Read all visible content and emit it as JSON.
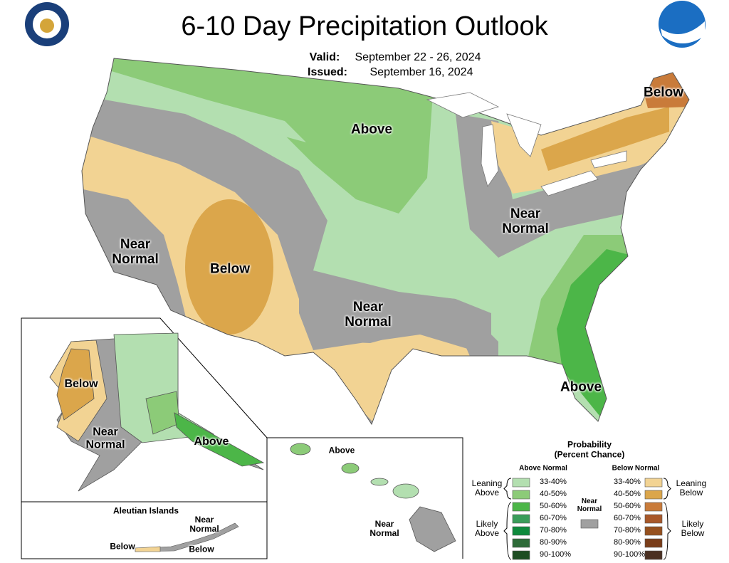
{
  "header": {
    "title": "6-10 Day Precipitation Outlook",
    "valid_label": "Valid:",
    "valid": "September 22 - 26, 2024",
    "issued_label": "Issued:",
    "issued": "September 16, 2024"
  },
  "map_labels": {
    "conus": [
      "Below",
      "Above",
      "Near Normal",
      "Below",
      "Near Normal",
      "Near Normal",
      "Above"
    ],
    "alaska": [
      "Below",
      "Near Normal",
      "Above"
    ],
    "aleutian": {
      "title": "Aleutian Islands",
      "labels": [
        "Near Normal",
        "Below",
        "Below"
      ]
    },
    "hawaii": [
      "Above",
      "Near Normal"
    ]
  },
  "legend": {
    "title": "Probability",
    "subtitle": "(Percent Chance)",
    "above_header": "Above Normal",
    "below_header": "Below Normal",
    "near_label": "Near Normal",
    "near_color": "#a0a0a0",
    "leaning_above": "Leaning Above",
    "likely_above": "Likely Above",
    "leaning_below": "Leaning Below",
    "likely_below": "Likely Below",
    "above": [
      {
        "label": "33-40%",
        "color": "#b3dfb0"
      },
      {
        "label": "40-50%",
        "color": "#8ccb78"
      },
      {
        "label": "50-60%",
        "color": "#4cb648"
      },
      {
        "label": "60-70%",
        "color": "#3a9d5a"
      },
      {
        "label": "70-80%",
        "color": "#0e8a3c"
      },
      {
        "label": "80-90%",
        "color": "#2d6b38"
      },
      {
        "label": "90-100%",
        "color": "#1d4d22"
      }
    ],
    "below": [
      {
        "label": "33-40%",
        "color": "#f2d393"
      },
      {
        "label": "40-50%",
        "color": "#dba64b"
      },
      {
        "label": "50-60%",
        "color": "#c97b3a"
      },
      {
        "label": "60-70%",
        "color": "#a8582a"
      },
      {
        "label": "70-80%",
        "color": "#96501e"
      },
      {
        "label": "80-90%",
        "color": "#7a3d19"
      },
      {
        "label": "90-100%",
        "color": "#4a3022"
      }
    ]
  }
}
